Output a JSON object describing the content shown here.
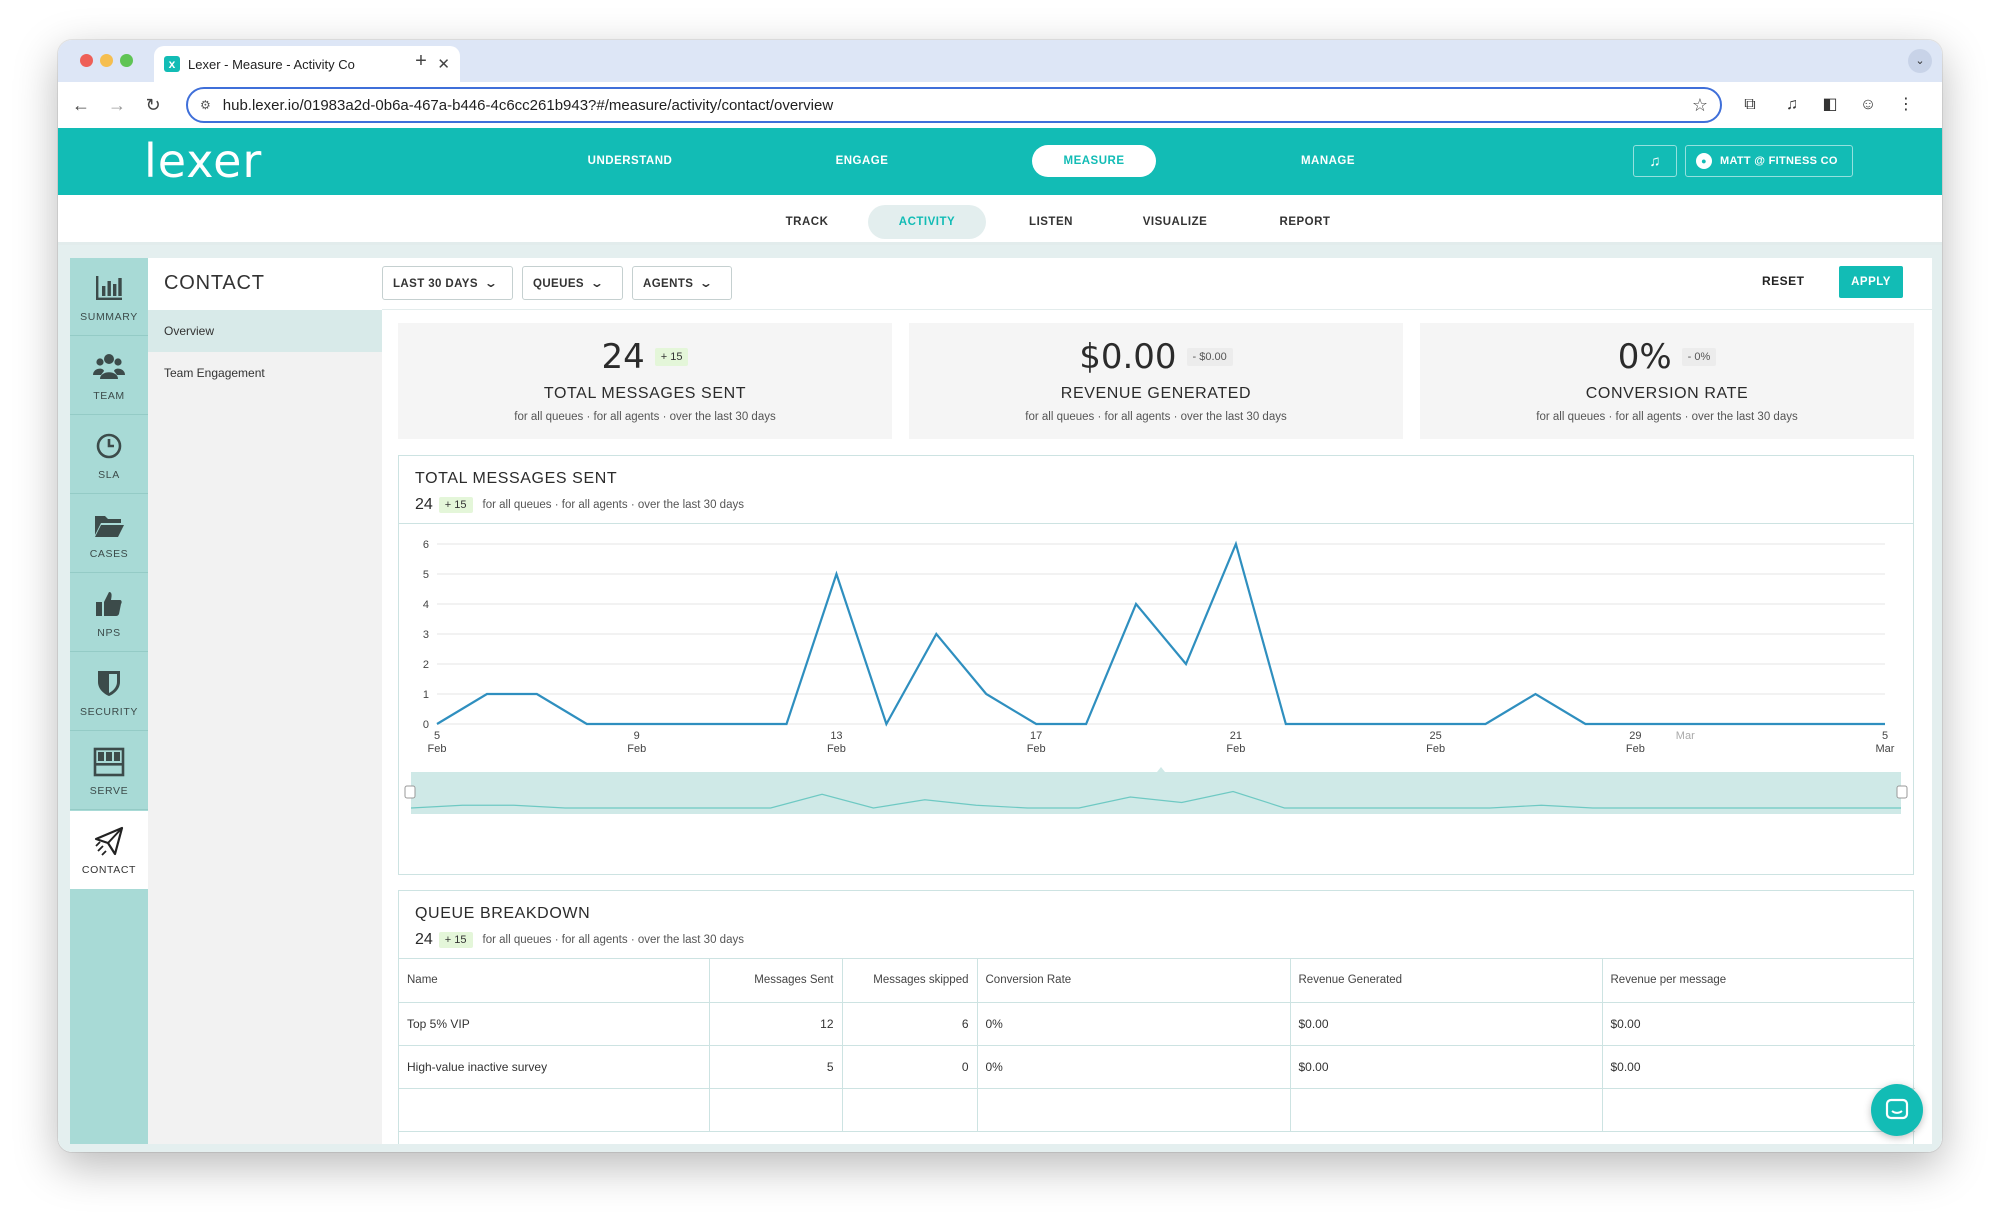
{
  "browser": {
    "tab_title": "Lexer - Measure - Activity Co",
    "tab_close": "✕",
    "new_tab": "+",
    "tab_menu": "⌄",
    "url": "hub.lexer.io/01983a2d-0b6a-467a-b446-4c6cc261b943?#/measure/activity/contact/overview"
  },
  "app": {
    "logo": "lexer",
    "brand_color": "#12bcb5",
    "top_nav": [
      "UNDERSTAND",
      "ENGAGE",
      "MEASURE",
      "MANAGE"
    ],
    "top_nav_active": "MEASURE",
    "user_label": "MATT @ FITNESS CO",
    "sub_nav": [
      "TRACK",
      "ACTIVITY",
      "LISTEN",
      "VISUALIZE",
      "REPORT"
    ],
    "sub_nav_active": "ACTIVITY"
  },
  "rail": [
    {
      "label": "SUMMARY",
      "icon": "bar-chart-icon"
    },
    {
      "label": "TEAM",
      "icon": "team-icon"
    },
    {
      "label": "SLA",
      "icon": "clock-icon"
    },
    {
      "label": "CASES",
      "icon": "folder-icon"
    },
    {
      "label": "NPS",
      "icon": "thumbs-up-icon"
    },
    {
      "label": "SECURITY",
      "icon": "shield-icon"
    },
    {
      "label": "SERVE",
      "icon": "serve-icon"
    },
    {
      "label": "CONTACT",
      "icon": "paper-plane-icon",
      "active": true
    }
  ],
  "sidebar": {
    "title": "CONTACT",
    "links": [
      "Overview",
      "Team Engagement"
    ]
  },
  "filters": {
    "date": "LAST 30 DAYS",
    "queues": "QUEUES",
    "agents": "AGENTS",
    "reset": "RESET",
    "apply": "APPLY"
  },
  "kpis": [
    {
      "value": "24",
      "delta": "+ 15",
      "label": "TOTAL MESSAGES SENT",
      "sub": "for all queues · for all agents · over the last 30 days"
    },
    {
      "value": "$0.00",
      "delta": "- $0.00",
      "label": "REVENUE GENERATED",
      "sub": "for all queues · for all agents · over the last 30 days"
    },
    {
      "value": "0%",
      "delta": "- 0%",
      "label": "CONVERSION RATE",
      "sub": "for all queues · for all agents · over the last 30 days"
    }
  ],
  "messages_panel": {
    "title": "TOTAL MESSAGES SENT",
    "count": "24",
    "delta": "+ 15",
    "sub": "for all queues · for all agents · over the last 30 days"
  },
  "chart_data": {
    "type": "line",
    "x": [
      "2024-02-05",
      "2024-02-06",
      "2024-02-07",
      "2024-02-08",
      "2024-02-09",
      "2024-02-10",
      "2024-02-11",
      "2024-02-12",
      "2024-02-13",
      "2024-02-14",
      "2024-02-15",
      "2024-02-16",
      "2024-02-17",
      "2024-02-18",
      "2024-02-19",
      "2024-02-20",
      "2024-02-21",
      "2024-02-22",
      "2024-02-23",
      "2024-02-24",
      "2024-02-25",
      "2024-02-26",
      "2024-02-27",
      "2024-02-28",
      "2024-02-29",
      "2024-03-01",
      "2024-03-02",
      "2024-03-03",
      "2024-03-04",
      "2024-03-05"
    ],
    "series": [
      {
        "values": [
          0,
          1,
          1,
          0,
          0,
          0,
          0,
          0,
          5,
          0,
          3,
          1,
          0,
          0,
          4,
          2,
          6,
          0,
          0,
          0,
          0,
          0,
          1,
          0,
          0,
          0,
          0,
          0,
          0,
          0
        ],
        "color": "#2f8fbf"
      }
    ],
    "ylim": [
      0,
      6
    ],
    "y_ticks": [
      "0",
      "1",
      "2",
      "3",
      "4",
      "5",
      "6"
    ],
    "x_ticks": [
      {
        "top": "5",
        "bottom": "Feb"
      },
      {
        "top": "9",
        "bottom": "Feb"
      },
      {
        "top": "13",
        "bottom": "Feb"
      },
      {
        "top": "17",
        "bottom": "Feb"
      },
      {
        "top": "21",
        "bottom": "Feb"
      },
      {
        "top": "25",
        "bottom": "Feb"
      },
      {
        "top": "29",
        "bottom": "Feb"
      },
      {
        "top": "Mar",
        "bottom": ""
      },
      {
        "top": "5",
        "bottom": "Mar"
      }
    ],
    "grid": true,
    "navigator": true
  },
  "queue_panel": {
    "title": "QUEUE BREAKDOWN",
    "count": "24",
    "delta": "+ 15",
    "sub": "for all queues · for all agents · over the last 30 days",
    "columns": [
      "Name",
      "Messages Sent",
      "Messages skipped",
      "Conversion Rate",
      "Revenue Generated",
      "Revenue per message"
    ],
    "rows": [
      [
        "Top 5% VIP",
        "12",
        "6",
        "0%",
        "$0.00",
        "$0.00"
      ],
      [
        "High-value inactive survey",
        "5",
        "0",
        "0%",
        "$0.00",
        "$0.00"
      ]
    ]
  }
}
